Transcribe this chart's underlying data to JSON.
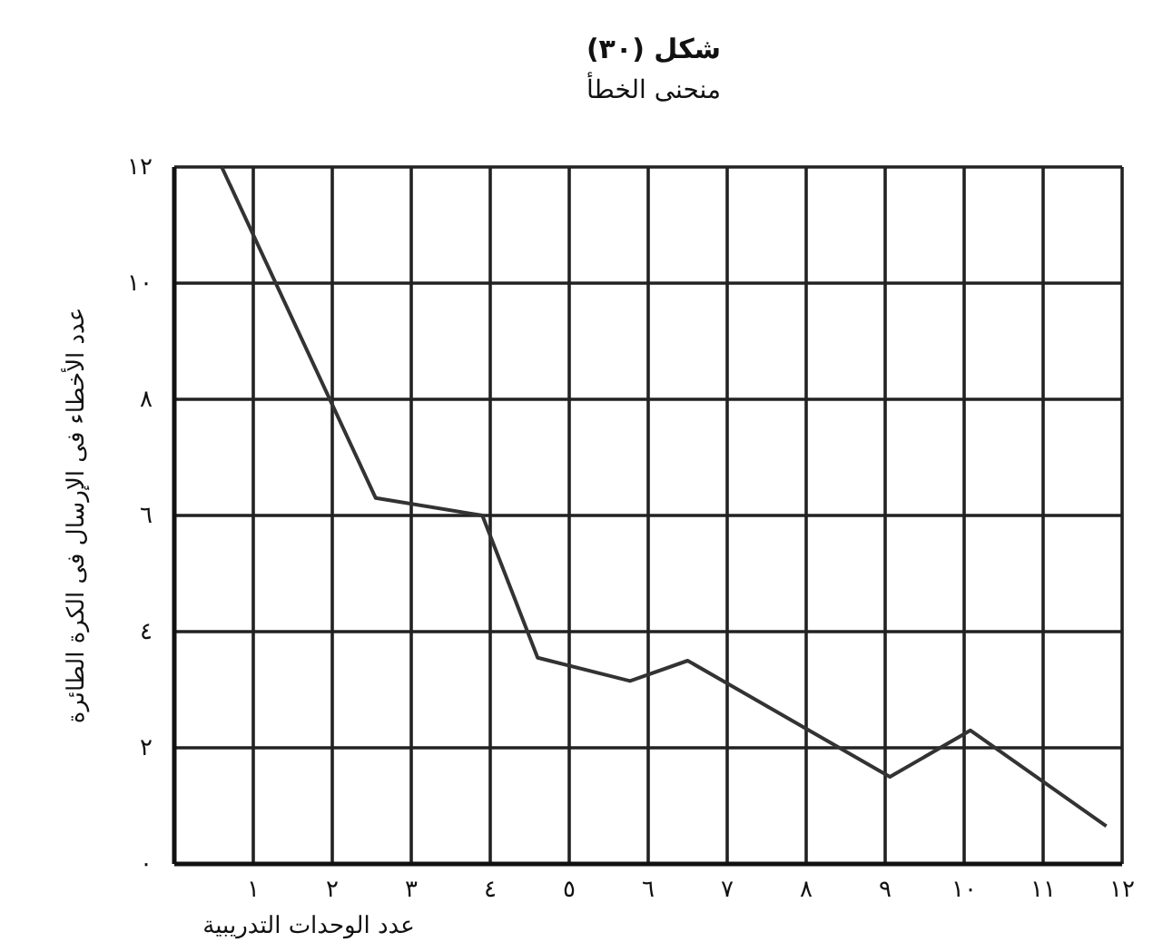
{
  "chart_data": {
    "type": "line",
    "title": "شكل (٣٠)",
    "subtitle": "منحنى الخطأ",
    "xlabel": "عدد الوحدات التدريبية",
    "ylabel": "عدد الأخطاء فى الإرسال فى الكرة الطائرة",
    "x": [
      0.6,
      2.55,
      3.9,
      4.6,
      5.77,
      6.5,
      9.06,
      10.08,
      11.8
    ],
    "values": [
      12,
      6.3,
      6.0,
      3.55,
      3.15,
      3.5,
      1.5,
      2.3,
      0.65
    ],
    "color": "#333333",
    "line_style": "solid",
    "marker": "none",
    "grid": true,
    "xlim": [
      0,
      12
    ],
    "ylim": [
      0,
      12
    ],
    "xticks": [
      {
        "value": 1,
        "label": "١"
      },
      {
        "value": 2,
        "label": "٢"
      },
      {
        "value": 3,
        "label": "٣"
      },
      {
        "value": 4,
        "label": "٤"
      },
      {
        "value": 5,
        "label": "٥"
      },
      {
        "value": 6,
        "label": "٦"
      },
      {
        "value": 7,
        "label": "٧"
      },
      {
        "value": 8,
        "label": "٨"
      },
      {
        "value": 9,
        "label": "٩"
      },
      {
        "value": 10,
        "label": "١٠"
      },
      {
        "value": 11,
        "label": "١١"
      },
      {
        "value": 12,
        "label": "١٢"
      }
    ],
    "yticks": [
      {
        "value": 0,
        "label": "٠"
      },
      {
        "value": 2,
        "label": "٢"
      },
      {
        "value": 4,
        "label": "٤"
      },
      {
        "value": 6,
        "label": "٦"
      },
      {
        "value": 8,
        "label": "٨"
      },
      {
        "value": 10,
        "label": "١٠"
      },
      {
        "value": 12,
        "label": "١٢"
      }
    ]
  }
}
